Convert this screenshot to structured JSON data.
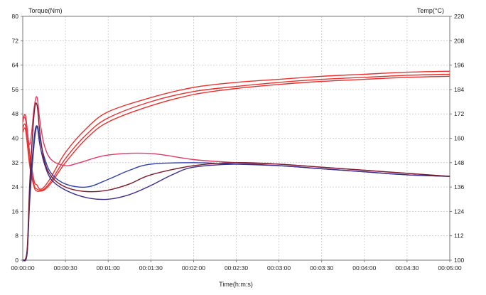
{
  "chart_data": {
    "type": "line",
    "title": "",
    "xlabel": "Time(h:m:s)",
    "y_left_label": "Torque(Nm)",
    "y_right_label": "Temp(°C)",
    "xlim": [
      0,
      300
    ],
    "ylim_left": [
      0,
      80
    ],
    "ylim_right": [
      100,
      220
    ],
    "grid": true,
    "x_tick_labels": [
      "00:00:00",
      "00:00:30",
      "00:01:00",
      "00:01:30",
      "00:02:00",
      "00:02:30",
      "00:03:00",
      "00:03:30",
      "00:04:00",
      "00:04:30",
      "00:05:00"
    ],
    "y_left_ticks": [
      0,
      8,
      16,
      24,
      32,
      40,
      48,
      56,
      64,
      72,
      80
    ],
    "y_right_ticks": [
      100,
      112,
      124,
      136,
      148,
      160,
      172,
      184,
      196,
      208,
      220
    ],
    "series": [
      {
        "axis": "right",
        "color": "#e8322f",
        "x": [
          0,
          2,
          5,
          8,
          10,
          12,
          15,
          20,
          30,
          45,
          60,
          90,
          120,
          150,
          180,
          210,
          240,
          270,
          300
        ],
        "values": [
          168,
          171,
          152,
          139,
          137,
          135,
          136,
          141,
          153,
          165,
          173,
          180,
          185,
          187.5,
          189,
          190.5,
          191.5,
          192.5,
          193
        ]
      },
      {
        "axis": "right",
        "color": "#e8322f",
        "x": [
          0,
          2,
          5,
          8,
          10,
          12,
          15,
          20,
          30,
          45,
          60,
          90,
          120,
          150,
          180,
          210,
          240,
          270,
          300
        ],
        "values": [
          165,
          166,
          148,
          137,
          135,
          134.5,
          135,
          139,
          150,
          162,
          170,
          178,
          183,
          185.5,
          187.5,
          189,
          190,
          191,
          191.5
        ]
      },
      {
        "axis": "right",
        "color": "#e8322f",
        "x": [
          0,
          2,
          5,
          8,
          10,
          12,
          15,
          20,
          30,
          45,
          60,
          90,
          120,
          150,
          180,
          210,
          240,
          270,
          300
        ],
        "values": [
          163,
          164,
          146,
          136,
          134,
          134,
          134.5,
          138,
          148,
          160,
          168,
          176,
          181.5,
          184.5,
          186.5,
          188,
          189,
          190,
          190.5
        ]
      },
      {
        "axis": "left",
        "color": "#e03a66",
        "x": [
          0,
          2,
          5,
          8,
          10,
          12,
          15,
          20,
          30,
          40,
          60,
          90,
          120,
          150,
          180,
          210,
          240,
          270,
          300
        ],
        "values": [
          47,
          46,
          38,
          50,
          53.5,
          46,
          38,
          33,
          31,
          32,
          34.5,
          35,
          33,
          32,
          31.5,
          30.5,
          29.5,
          28.5,
          27.5
        ]
      },
      {
        "axis": "left",
        "color": "#2f3fb0",
        "x": [
          0,
          3,
          5,
          8,
          10,
          12,
          15,
          20,
          30,
          45,
          60,
          75,
          90,
          120,
          150,
          180,
          210,
          240,
          270,
          300
        ],
        "values": [
          0,
          2,
          20,
          38,
          44,
          40,
          34,
          28.5,
          25,
          24,
          26.5,
          29.5,
          31.5,
          32,
          31.5,
          31,
          30,
          29,
          28,
          27.5
        ]
      },
      {
        "axis": "left",
        "color": "#3a2c8a",
        "x": [
          0,
          3,
          5,
          8,
          10,
          12,
          15,
          20,
          30,
          45,
          60,
          75,
          90,
          105,
          120,
          150,
          180,
          210,
          240,
          270,
          300
        ],
        "values": [
          0,
          2,
          22,
          40,
          44,
          38,
          32,
          26.5,
          23,
          20.5,
          20,
          21.5,
          24.5,
          28,
          30.5,
          31.5,
          31,
          30,
          29,
          28,
          27.5
        ]
      },
      {
        "axis": "left",
        "color": "#7a1a2a",
        "x": [
          0,
          3,
          5,
          8,
          10,
          12,
          15,
          20,
          30,
          45,
          60,
          75,
          90,
          120,
          150,
          180,
          210,
          240,
          270,
          300
        ],
        "values": [
          0,
          3,
          26,
          48,
          51,
          42,
          33,
          27.5,
          24,
          22.5,
          23,
          25,
          28,
          31,
          32,
          31.5,
          30.5,
          29.5,
          28.5,
          27.5
        ]
      }
    ]
  }
}
